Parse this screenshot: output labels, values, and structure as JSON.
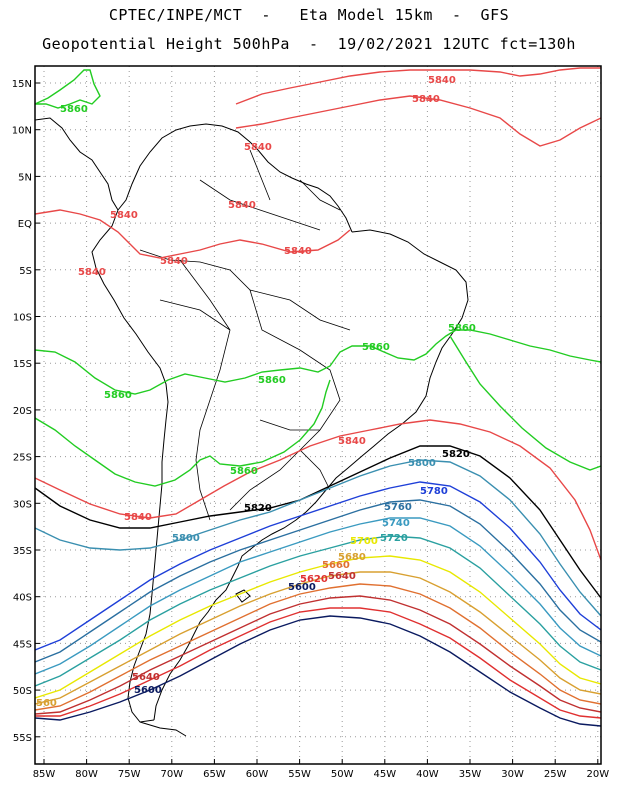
{
  "header": {
    "line1": "CPTEC/INPE/MCT  -   Eta Model 15km  -  GFS",
    "line2": "Geopotential Height 500hPa  -  19/02/2021 12UTC fct=130h"
  },
  "map": {
    "lat_labels": [
      "15N",
      "10N",
      "5N",
      "EQ",
      "5S",
      "10S",
      "15S",
      "20S",
      "25S",
      "30S",
      "35S",
      "40S",
      "45S",
      "50S",
      "55S"
    ],
    "lon_labels": [
      "85W",
      "80W",
      "75W",
      "70W",
      "65W",
      "60W",
      "55W",
      "50W",
      "45W",
      "40W",
      "35W",
      "30W",
      "25W",
      "20W"
    ],
    "colors": {
      "c5860": "#22cc22",
      "c5840": "#e84848",
      "c5820": "#000000",
      "c5800": "#3a8fb0",
      "c5780": "#1e3fd8",
      "c5760": "#2a6fa0",
      "c5740": "#3a9ac0",
      "c5720": "#2aa0a0",
      "c5700": "#e8e800",
      "c5680": "#d8a030",
      "c5660": "#e07030",
      "c5640": "#c03030",
      "c5620": "#e03030",
      "c5600": "#0a1a60",
      "land": "#000000",
      "grid": "#9a9a9a"
    },
    "labels": {
      "l5860_a": "5860",
      "l5860_b": "5860",
      "l5860_c": "5860",
      "l5860_d": "5860",
      "l5860_e": "5860",
      "l5860_f": "5860",
      "l5840_a": "5840",
      "l5840_b": "5840",
      "l5840_c": "5840",
      "l5840_d": "5840",
      "l5840_e": "5840",
      "l5840_f": "5840",
      "l5840_g": "5840",
      "l5840_h": "5840",
      "l5840_i": "5840",
      "l5820_a": "5820",
      "l5820_b": "5820",
      "l5800_a": "5800",
      "l5800_b": "5800",
      "l5780": "5780",
      "l5760": "5760",
      "l5740": "5740",
      "l5720": "5720",
      "l5700": "5700",
      "l5680": "5680",
      "l5660": "5660",
      "l5640_a": "5640",
      "l5640_b": "5640",
      "l5620": "5620",
      "l5600_a": "5600",
      "l5600_b": "5600",
      "l_edge": "560"
    }
  }
}
